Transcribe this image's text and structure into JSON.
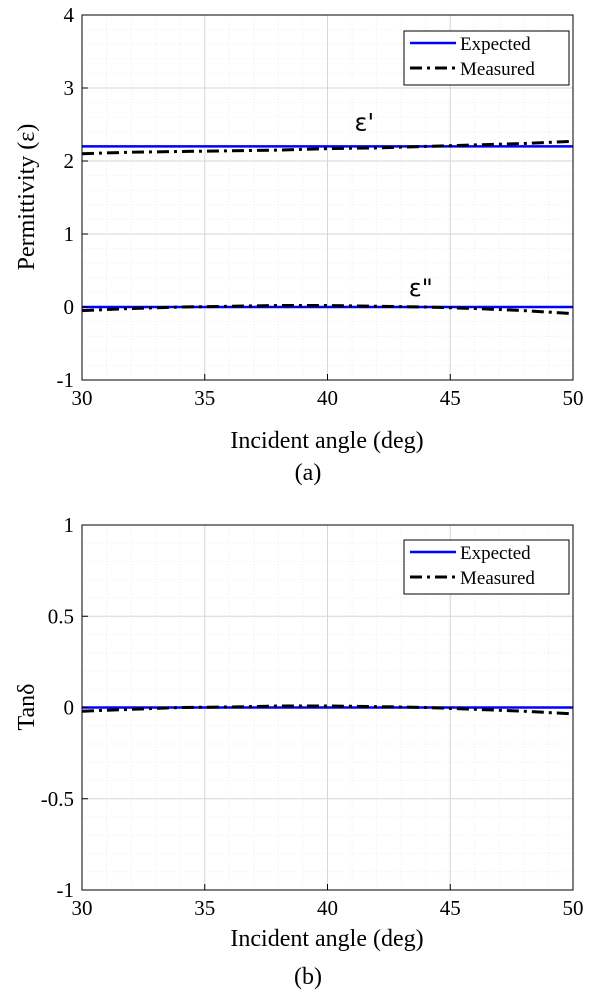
{
  "colors": {
    "expected": "#0000ff",
    "measured": "#000000",
    "grid": "#e3e3e3"
  },
  "chart_data": [
    {
      "type": "line",
      "caption": "(a)",
      "xlabel": "Incident angle (deg)",
      "ylabel": "Permittivity (ε)",
      "xlim": [
        30,
        50
      ],
      "ylim": [
        -1,
        4
      ],
      "xticks": [
        "30",
        "35",
        "40",
        "45",
        "50"
      ],
      "yticks": [
        "-1",
        "0",
        "1",
        "2",
        "3",
        "4"
      ],
      "grid": true,
      "legend_position": "top-right",
      "annotations": [
        {
          "text": "ε'",
          "x": 41.5,
          "y": 2.42
        },
        {
          "text": "ε\"",
          "x": 43.8,
          "y": 0.15
        }
      ],
      "x": [
        30,
        32,
        34,
        36,
        38,
        40,
        42,
        44,
        46,
        48,
        50
      ],
      "series": [
        {
          "name": "Expected",
          "style": "solid",
          "values": [
            2.2,
            2.2,
            2.2,
            2.2,
            2.2,
            2.2,
            2.2,
            2.2,
            2.2,
            2.2,
            2.2
          ]
        },
        {
          "name": "Measured",
          "style": "dashdot",
          "values": [
            2.1,
            2.12,
            2.13,
            2.14,
            2.15,
            2.17,
            2.18,
            2.2,
            2.22,
            2.24,
            2.27
          ]
        },
        {
          "name": "Expected",
          "style": "solid",
          "values": [
            0,
            0,
            0,
            0,
            0,
            0,
            0,
            0,
            0,
            0,
            0
          ]
        },
        {
          "name": "Measured",
          "style": "dashdot",
          "values": [
            -0.05,
            -0.02,
            0,
            0.01,
            0.02,
            0.02,
            0.01,
            0,
            -0.02,
            -0.05,
            -0.09
          ]
        }
      ],
      "legend": [
        "Expected",
        "Measured"
      ]
    },
    {
      "type": "line",
      "caption": "(b)",
      "xlabel": "Incident angle (deg)",
      "ylabel": "Tanδ",
      "xlim": [
        30,
        50
      ],
      "ylim": [
        -1,
        1
      ],
      "xticks": [
        "30",
        "35",
        "40",
        "45",
        "50"
      ],
      "yticks": [
        "-1",
        "-0.5",
        "0",
        "0.5",
        "1"
      ],
      "grid": true,
      "legend_position": "top-right",
      "x": [
        30,
        32,
        34,
        36,
        38,
        40,
        42,
        44,
        46,
        48,
        50
      ],
      "series": [
        {
          "name": "Expected",
          "style": "solid",
          "values": [
            0,
            0,
            0,
            0,
            0,
            0,
            0,
            0,
            0,
            0,
            0
          ]
        },
        {
          "name": "Measured",
          "style": "dashdot",
          "values": [
            -0.02,
            -0.01,
            0,
            0.003,
            0.008,
            0.008,
            0.005,
            0,
            -0.01,
            -0.02,
            -0.035
          ]
        }
      ],
      "legend": [
        "Expected",
        "Measured"
      ]
    }
  ]
}
